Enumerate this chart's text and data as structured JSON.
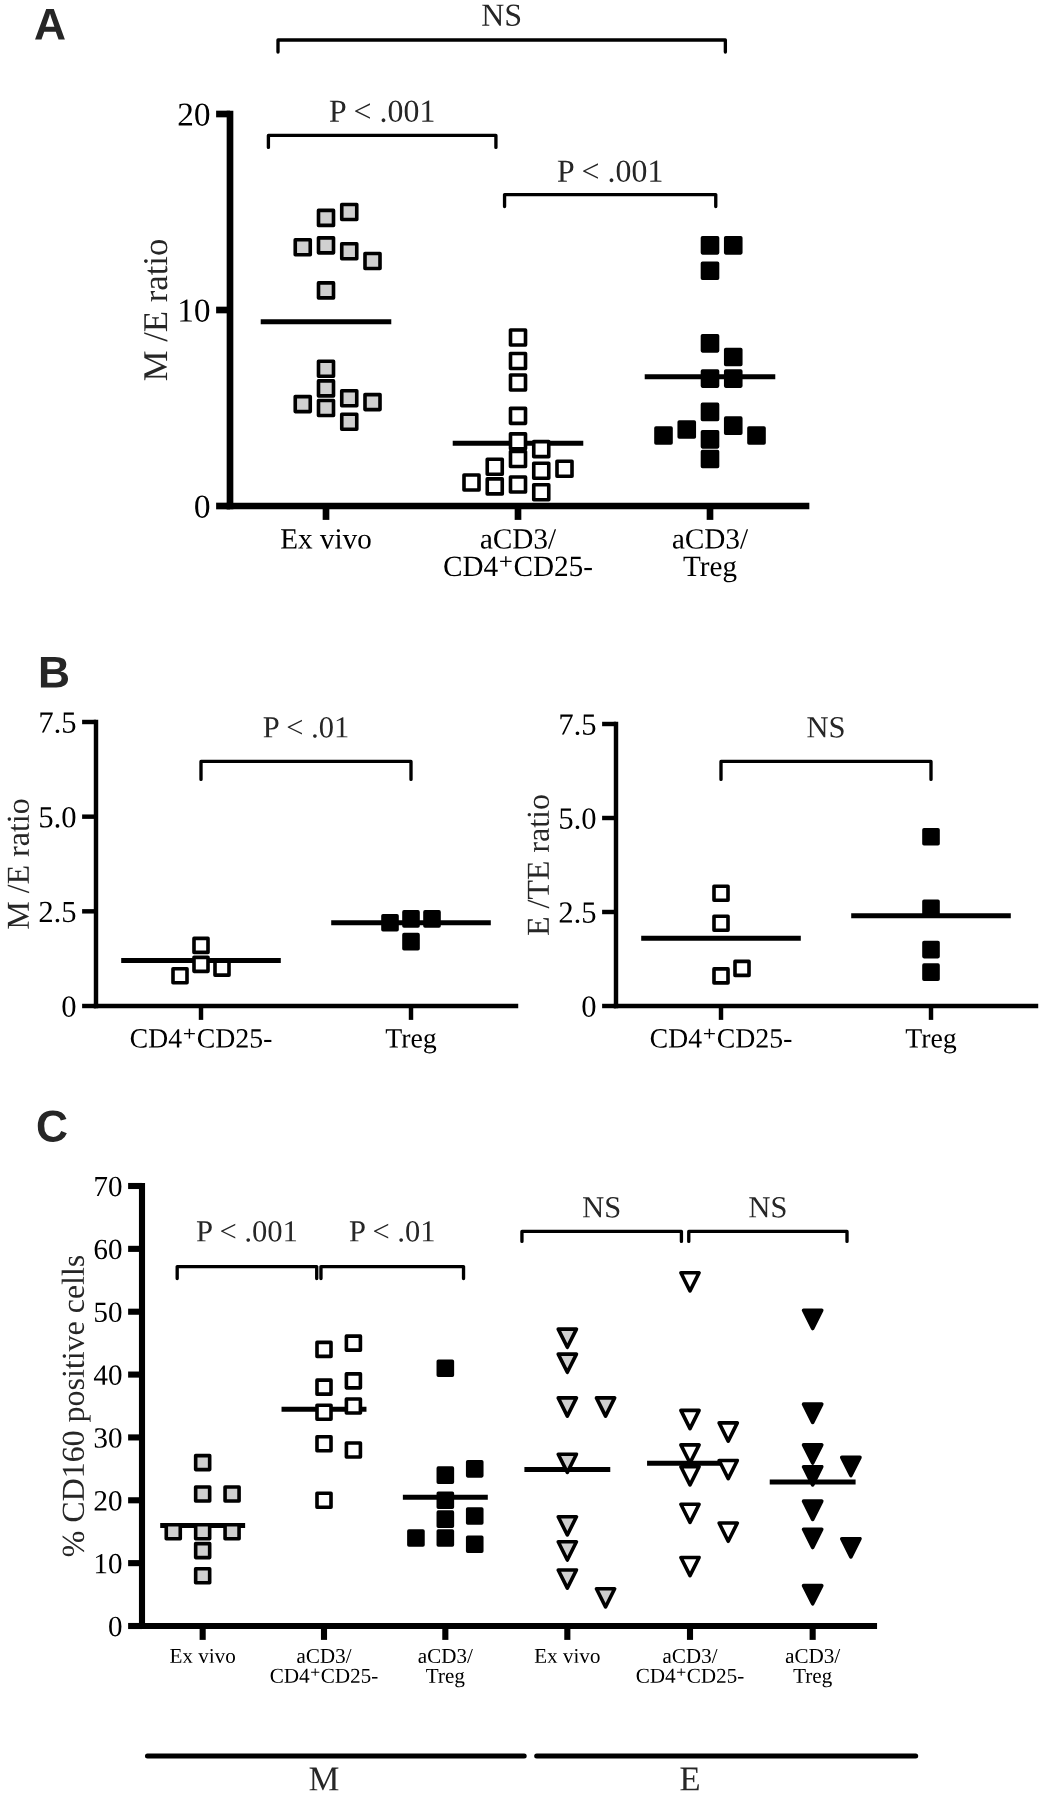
{
  "chart_data": [
    {
      "type": "scatter",
      "title": "A",
      "ylabel": "M /E ratio",
      "categories": [
        "Ex vivo",
        "aCD3/\nCD4⁺CD25-",
        "aCD3/\nTreg"
      ],
      "ylim": [
        0,
        20
      ],
      "yticks": [
        0,
        10,
        20
      ],
      "series": [
        {
          "marker": "square",
          "color": "#d0d0d0",
          "x": [
            "Ex vivo",
            "Ex vivo",
            "Ex vivo",
            "Ex vivo",
            "Ex vivo",
            "Ex vivo",
            "Ex vivo",
            "Ex vivo",
            "Ex vivo",
            "Ex vivo",
            "Ex vivo",
            "Ex vivo",
            "Ex vivo",
            "Ex vivo"
          ],
          "values": [
            14.7,
            15.0,
            13.3,
            13.0,
            13.2,
            12.5,
            11.0,
            7.0,
            6.0,
            5.5,
            5.2,
            5.0,
            5.3,
            4.3
          ]
        },
        {
          "marker": "square",
          "color": "#ffffff",
          "x": [
            "aCD3/\nCD4⁺CD25-",
            "aCD3/\nCD4⁺CD25-",
            "aCD3/\nCD4⁺CD25-",
            "aCD3/\nCD4⁺CD25-",
            "aCD3/\nCD4⁺CD25-",
            "aCD3/\nCD4⁺CD25-",
            "aCD3/\nCD4⁺CD25-",
            "aCD3/\nCD4⁺CD25-",
            "aCD3/\nCD4⁺CD25-",
            "aCD3/\nCD4⁺CD25-",
            "aCD3/\nCD4⁺CD25-",
            "aCD3/\nCD4⁺CD25-",
            "aCD3/\nCD4⁺CD25-",
            "aCD3/\nCD4⁺CD25-"
          ],
          "values": [
            8.6,
            7.4,
            6.3,
            4.6,
            3.3,
            2.9,
            2.4,
            1.8,
            2.0,
            1.9,
            1.1,
            1.0,
            1.2,
            0.7
          ]
        },
        {
          "marker": "square",
          "color": "#000000",
          "x": [
            "aCD3/\nTreg",
            "aCD3/\nTreg",
            "aCD3/\nTreg",
            "aCD3/\nTreg",
            "aCD3/\nTreg",
            "aCD3/\nTreg",
            "aCD3/\nTreg",
            "aCD3/\nTreg",
            "aCD3/\nTreg",
            "aCD3/\nTreg",
            "aCD3/\nTreg",
            "aCD3/\nTreg",
            "aCD3/\nTreg",
            "aCD3/\nTreg"
          ],
          "values": [
            13.3,
            13.3,
            12.0,
            8.3,
            7.6,
            6.5,
            6.5,
            4.8,
            4.1,
            3.4,
            3.9,
            3.6,
            3.6,
            2.4
          ]
        }
      ],
      "ref_lines": [
        {
          "axis": "y",
          "value": 9.4,
          "color": "#000000"
        },
        {
          "axis": "y",
          "value": 3.2,
          "color": "#000000"
        },
        {
          "axis": "y",
          "value": 6.6,
          "color": "#000000"
        }
      ],
      "annotations": [
        "P < .001",
        "P < .001",
        "NS"
      ]
    },
    {
      "type": "scatter",
      "title": "B",
      "ylabel": "M /E ratio",
      "categories": [
        "CD4⁺CD25-",
        "Treg"
      ],
      "ylim": [
        0,
        7.5
      ],
      "yticks": [
        0,
        2.5,
        {
          "value": 5,
          "label": "5.0"
        },
        7.5
      ],
      "series": [
        {
          "marker": "square",
          "color": "#ffffff",
          "x": [
            "CD4⁺CD25-",
            "CD4⁺CD25-",
            "CD4⁺CD25-",
            "CD4⁺CD25-"
          ],
          "values": [
            1.6,
            1.1,
            1.0,
            0.8
          ]
        },
        {
          "marker": "square",
          "color": "#000000",
          "x": [
            "Treg",
            "Treg",
            "Treg",
            "Treg"
          ],
          "values": [
            2.3,
            2.3,
            2.2,
            1.7
          ]
        }
      ],
      "ref_lines": [
        {
          "axis": "y",
          "value": 1.2,
          "color": "#000000"
        },
        {
          "axis": "y",
          "value": 2.2,
          "color": "#000000"
        }
      ],
      "annotations": [
        "P < .01"
      ]
    },
    {
      "type": "scatter",
      "ylabel": "E /TE ratio",
      "categories": [
        "CD4⁺CD25-",
        "Treg"
      ],
      "ylim": [
        0,
        7.5
      ],
      "yticks": [
        0,
        2.5,
        {
          "value": 5,
          "label": "5.0"
        },
        7.5
      ],
      "series": [
        {
          "marker": "square",
          "color": "#ffffff",
          "x": [
            "CD4⁺CD25-",
            "CD4⁺CD25-",
            "CD4⁺CD25-",
            "CD4⁺CD25-"
          ],
          "values": [
            3.0,
            2.2,
            0.8,
            1.0
          ]
        },
        {
          "marker": "square",
          "color": "#000000",
          "x": [
            "Treg",
            "Treg",
            "Treg",
            "Treg"
          ],
          "values": [
            4.5,
            2.6,
            1.5,
            0.9
          ]
        }
      ],
      "ref_lines": [
        {
          "axis": "y",
          "value": 1.8,
          "color": "#000000"
        },
        {
          "axis": "y",
          "value": 2.4,
          "color": "#000000"
        }
      ],
      "annotations": [
        "NS"
      ]
    },
    {
      "type": "scatter",
      "title": "C",
      "ylabel": "% CD160 positive cells",
      "xlabel": "M",
      "categories": [
        "Ex vivo",
        "aCD3/\nCD4⁺CD25-",
        "aCD3/\nTreg"
      ],
      "ylim": [
        0,
        70
      ],
      "yticks": [
        0,
        10,
        20,
        30,
        40,
        50,
        60,
        70
      ],
      "series": [
        {
          "marker": "square",
          "color": "#d0d0d0",
          "x": [
            "Ex vivo",
            "Ex vivo",
            "Ex vivo",
            "Ex vivo",
            "Ex vivo",
            "Ex vivo",
            "Ex vivo",
            "Ex vivo"
          ],
          "values": [
            26,
            21,
            21,
            15,
            15,
            15,
            12,
            8
          ]
        },
        {
          "marker": "square",
          "color": "#ffffff",
          "x": [
            "aCD3/\nCD4⁺CD25-",
            "aCD3/\nCD4⁺CD25-",
            "aCD3/\nCD4⁺CD25-",
            "aCD3/\nCD4⁺CD25-",
            "aCD3/\nCD4⁺CD25-",
            "aCD3/\nCD4⁺CD25-",
            "aCD3/\nCD4⁺CD25-",
            "aCD3/\nCD4⁺CD25-",
            "aCD3/\nCD4⁺CD25-"
          ],
          "values": [
            44,
            45,
            38,
            39,
            34,
            35,
            29,
            28,
            20
          ]
        },
        {
          "marker": "square",
          "color": "#000000",
          "x": [
            "aCD3/\nTreg",
            "aCD3/\nTreg",
            "aCD3/\nTreg",
            "aCD3/\nTreg",
            "aCD3/\nTreg",
            "aCD3/\nTreg",
            "aCD3/\nTreg",
            "aCD3/\nTreg",
            "aCD3/\nTreg"
          ],
          "values": [
            41,
            24,
            25,
            20,
            17.5,
            17,
            14,
            13,
            14
          ]
        }
      ],
      "ref_lines": [
        {
          "axis": "y",
          "value": 16,
          "color": "#000000"
        },
        {
          "axis": "y",
          "value": 34.5,
          "color": "#000000"
        },
        {
          "axis": "y",
          "value": 20.5,
          "color": "#000000"
        }
      ],
      "annotations": [
        "P < .001",
        "P < .01"
      ]
    },
    {
      "type": "scatter",
      "xlabel": "E",
      "tick_labels": "x",
      "categories": [
        "Ex vivo",
        "aCD3/\nCD4⁺CD25-",
        "aCD3/\nTreg"
      ],
      "ylim": [
        0,
        70
      ],
      "series": [
        {
          "marker": "triangle",
          "color": "#d0d0d0",
          "x": [
            "Ex vivo",
            "Ex vivo",
            "Ex vivo",
            "Ex vivo",
            "Ex vivo",
            "Ex vivo",
            "Ex vivo",
            "Ex vivo",
            "Ex vivo"
          ],
          "values": [
            46,
            42,
            35,
            35,
            26,
            16,
            12,
            7.5,
            4.5
          ]
        },
        {
          "marker": "triangle",
          "color": "#ffffff",
          "x": [
            "aCD3/\nCD4⁺CD25-",
            "aCD3/\nCD4⁺CD25-",
            "aCD3/\nCD4⁺CD25-",
            "aCD3/\nCD4⁺CD25-",
            "aCD3/\nCD4⁺CD25-",
            "aCD3/\nCD4⁺CD25-",
            "aCD3/\nCD4⁺CD25-",
            "aCD3/\nCD4⁺CD25-",
            "aCD3/\nCD4⁺CD25-"
          ],
          "values": [
            55,
            33,
            31,
            27.5,
            24,
            25,
            18,
            15,
            9.5
          ]
        },
        {
          "marker": "triangle",
          "color": "#000000",
          "x": [
            "aCD3/\nTreg",
            "aCD3/\nTreg",
            "aCD3/\nTreg",
            "aCD3/\nTreg",
            "aCD3/\nTreg",
            "aCD3/\nTreg",
            "aCD3/\nTreg",
            "aCD3/\nTreg",
            "aCD3/\nTreg"
          ],
          "values": [
            49,
            34,
            27.5,
            25.5,
            24,
            18.5,
            14,
            12.5,
            5
          ]
        }
      ],
      "ref_lines": [
        {
          "axis": "y",
          "value": 25,
          "color": "#000000"
        },
        {
          "axis": "y",
          "value": 26,
          "color": "#000000"
        },
        {
          "axis": "y",
          "value": 23,
          "color": "#000000"
        }
      ],
      "annotations": [
        "NS",
        "NS"
      ]
    }
  ]
}
